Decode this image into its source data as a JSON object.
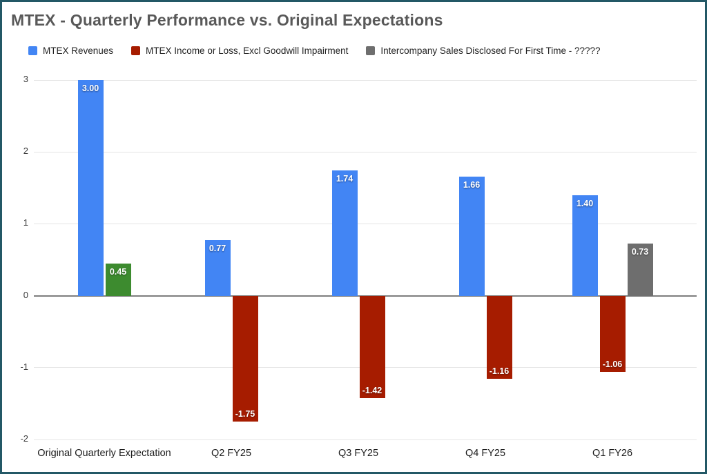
{
  "colors": {
    "frame_border": "#235866",
    "title_text": "#595959",
    "revenue_blue": "#4285f4",
    "income_red": "#a61c00",
    "expectation_green": "#3d8b2f",
    "intercompany_gray": "#6e6e6e"
  },
  "chart_data": {
    "type": "bar",
    "title": "MTEX - Quarterly Performance vs. Original Expectations",
    "categories": [
      "Original Quarterly Expectation",
      "Q2 FY25",
      "Q3 FY25",
      "Q4 FY25",
      "Q1 FY26"
    ],
    "series": [
      {
        "name": "MTEX Revenues",
        "color": "#4285f4",
        "values": [
          3.0,
          0.77,
          1.74,
          1.66,
          1.4
        ],
        "labels": [
          "3.00",
          "0.77",
          "1.74",
          "1.66",
          "1.40"
        ]
      },
      {
        "name": "MTEX Income or Loss, Excl Goodwill Impairment",
        "color": "#a61c00",
        "point_colors": [
          "#3d8b2f",
          null,
          null,
          null,
          null
        ],
        "values": [
          0.45,
          -1.75,
          -1.42,
          -1.16,
          -1.06
        ],
        "labels": [
          "0.45",
          "-1.75",
          "-1.42",
          "-1.16",
          "-1.06"
        ]
      },
      {
        "name": "Intercompany Sales Disclosed For First Time - ?????",
        "color": "#6e6e6e",
        "values": [
          null,
          null,
          null,
          null,
          0.73
        ],
        "labels": [
          null,
          null,
          null,
          null,
          "0.73"
        ]
      }
    ],
    "ylim": [
      -2,
      3
    ],
    "yticks": [
      3,
      2,
      1,
      0,
      -1,
      -2
    ],
    "grid": true,
    "legend_position": "top",
    "xlabel": "",
    "ylabel": ""
  }
}
